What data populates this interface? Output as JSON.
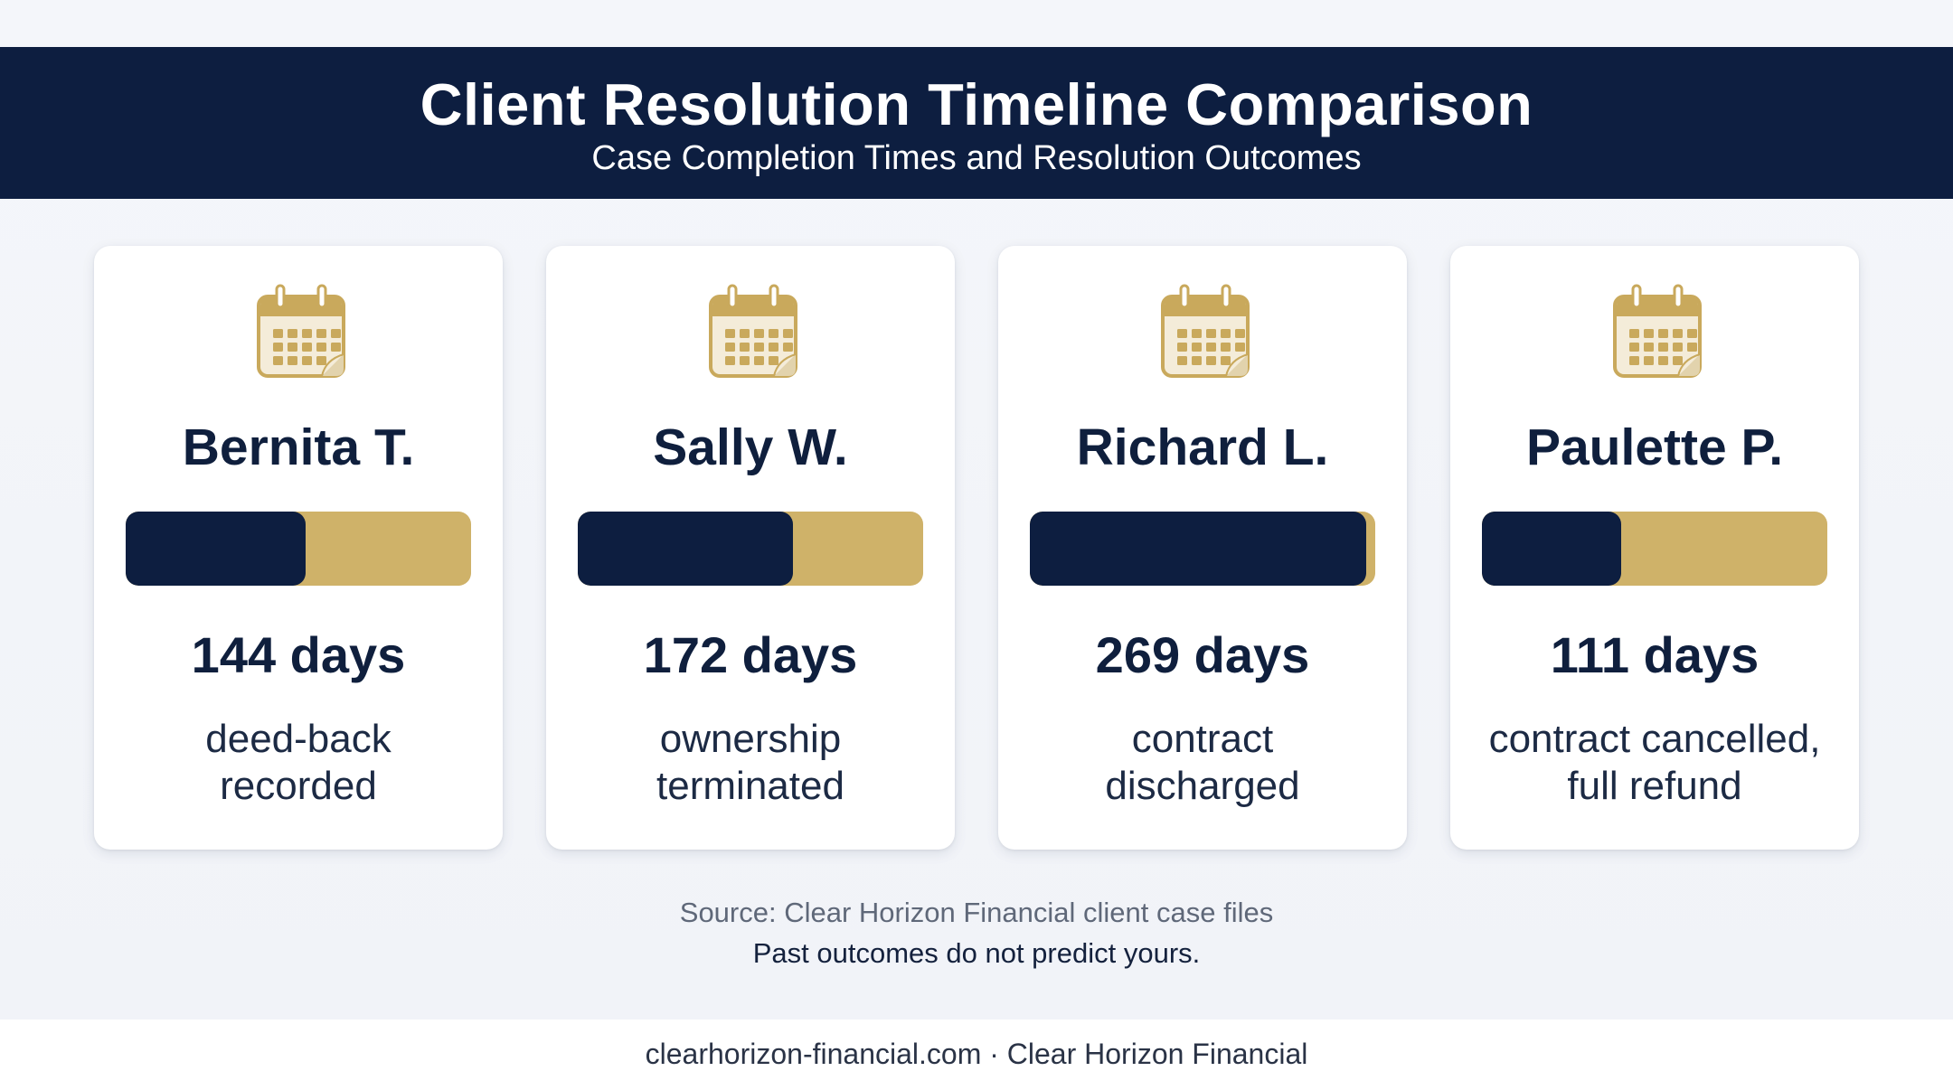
{
  "header": {
    "title": "Client Resolution Timeline Comparison",
    "subtitle": "Case Completion Times and Resolution Outcomes"
  },
  "colors": {
    "header_bg": "#0d1e40",
    "bar_fill": "#0d1e40",
    "bar_track": "#cfb269",
    "icon_gold": "#c9a95c"
  },
  "icon": "calendar-icon",
  "chart_data": {
    "type": "bar",
    "title": "Client Resolution Timeline Comparison",
    "subtitle": "Case Completion Times and Resolution Outcomes",
    "categories": [
      "Bernita T.",
      "Sally W.",
      "Richard L.",
      "Paulette P."
    ],
    "values": [
      144,
      172,
      269,
      111
    ],
    "value_labels": [
      "144 days",
      "172 days",
      "269 days",
      "111 days"
    ],
    "outcomes": [
      [
        "deed-back",
        "recorded"
      ],
      [
        "ownership",
        "terminated"
      ],
      [
        "contract",
        "discharged"
      ],
      [
        "contract cancelled,",
        "full refund"
      ]
    ],
    "unit": "days",
    "ylim": [
      0,
      276
    ]
  },
  "source": "Source: Clear Horizon Financial client case files",
  "disclaimer": "Past outcomes do not predict yours.",
  "footer": "clearhorizon-financial.com · Clear Horizon Financial"
}
